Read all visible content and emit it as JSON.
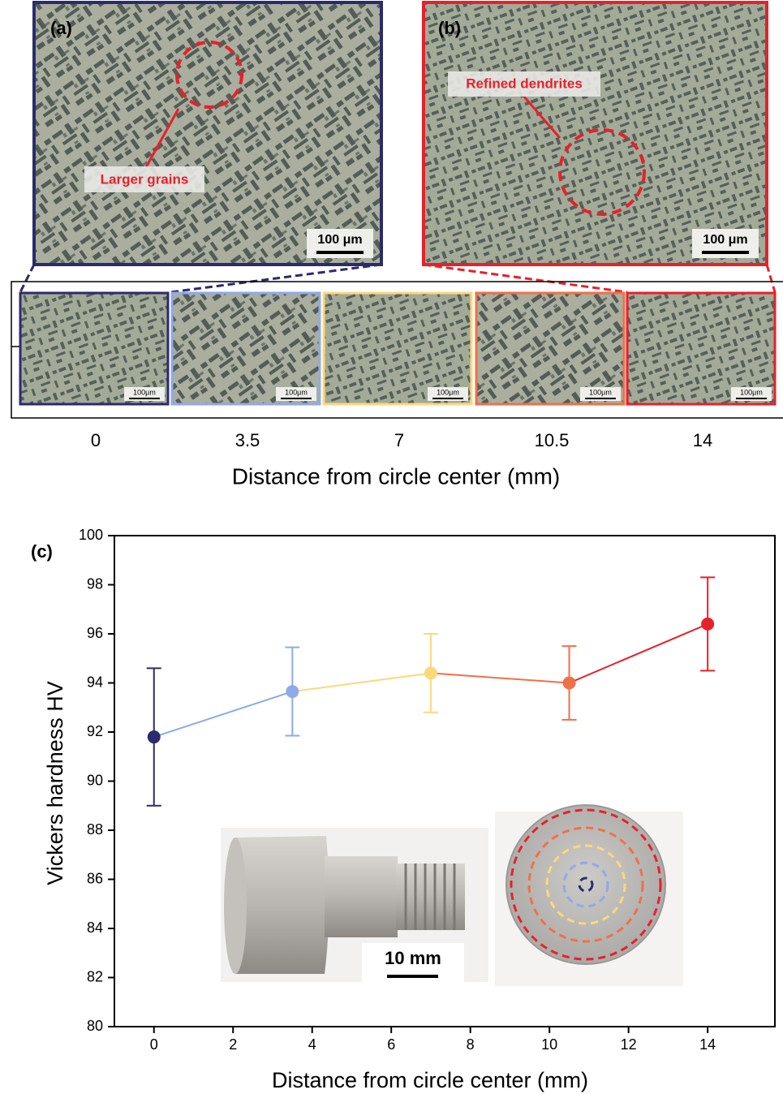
{
  "micrographs": {
    "a": {
      "label": "(a)",
      "annotation": "Larger grains",
      "scale_bar": "100 μm"
    },
    "b": {
      "label": "(b)",
      "annotation": "Refined dendrites",
      "scale_bar": "100 μm"
    },
    "thumb_scale_bar": "100μm",
    "positions": [
      0,
      3.5,
      7,
      10.5,
      14
    ],
    "axis_label": "Distance from circle center (mm)"
  },
  "chart_data": {
    "type": "line",
    "panel_label": "(c)",
    "xlabel": "Distance from circle center (mm)",
    "ylabel": "Vickers hardness HV",
    "x": [
      0,
      3.5,
      7,
      10.5,
      14
    ],
    "values": [
      91.8,
      93.65,
      94.4,
      94.0,
      96.4
    ],
    "errors": [
      2.8,
      1.8,
      1.6,
      1.5,
      1.9
    ],
    "colors": [
      "#2e2a6e",
      "#8eaaea",
      "#fcd87c",
      "#f07048",
      "#e8202a"
    ],
    "xlim": [
      -1,
      15.7
    ],
    "ylim": [
      80,
      100
    ],
    "xticks": [
      0,
      2,
      4,
      6,
      8,
      10,
      12,
      14
    ],
    "yticks": [
      80,
      82,
      84,
      86,
      88,
      90,
      92,
      94,
      96,
      98,
      100
    ],
    "scale_bar": "10 mm"
  }
}
